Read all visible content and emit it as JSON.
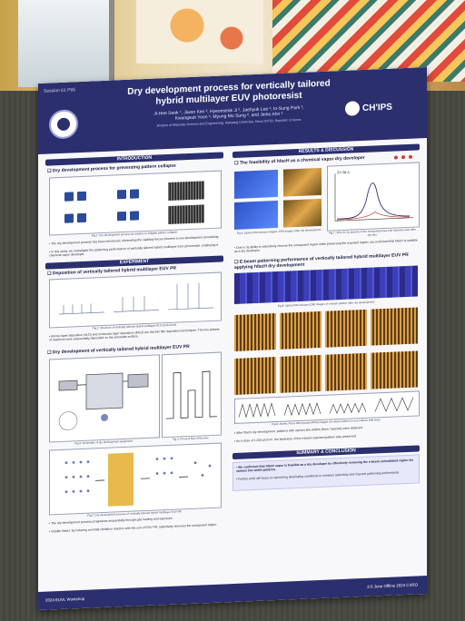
{
  "poster": {
    "conference_id": "Session 61 P65",
    "title_line1": "Dry development process for vertically tailored",
    "title_line2": "hybrid multilayer EUV photoresist",
    "authors_line1": "Ji-Hee Seok ¹, Jiwon Kim ², Hyeonseok Ji ², Jaehyuk Lee ², In-Sung Park ²,",
    "authors_line2": "Kwangsub Yoon ², Myung Mo Sung ², and Jinho Ahn ²",
    "affiliation": "Division of Materials Science and Engineering, Hanyang University, Seoul 04763, Republic of Korea",
    "logo_text": "CH'IPS",
    "sections": {
      "intro": "INTRODUCTION",
      "experiment": "EXPERIMENT",
      "results": "RESULTS & DISCUSSION",
      "summary": "SUMMARY & CONCLUSION"
    },
    "left": {
      "sub1": "❑ Dry development process for preventing pattern collapse",
      "fig1": "Fig.1. Dry development process as solution to mitigate pattern collapse",
      "intro_text": "• The dry development process has been introduced, eliminating the capillary forces inherent in wet development processing.",
      "intro_text2": "• In this study, we investigate the patterning performance of vertically tailored hybrid multilayer EUV photoresist, employing a chemical vapor developer.",
      "sub2": "❑ Deposition of vertically tailored hybrid multilayer EUV PR",
      "fig2": "Fig.2. Structure of vertically tailored hybrid multilayer EUV photoresist",
      "exp_text": "• Atomic layer deposition (ALD) and molecular layer deposition (MLD) are the thin film deposition techniques. The two phases of reactions were sequentially deposited on the substrate surface.",
      "sub3": "❑ Dry development of vertically tailored hybrid multilayer EUV PR",
      "fig3": "Fig.3. Schematic of dry development equipment",
      "fig4": "Fig.4. Process flow of the dev.",
      "fig5": "Fig.5. Dry development process of vertically tailored hybrid multilayer EUV PR",
      "dev_text": "• The dry development process progresses sequentially through gas loading and exposure.",
      "dev_text2": "• Volatile hfacH, by inducing an initial chelation reaction with the unit of EUV PR, selectively removes the unexposed region."
    },
    "right": {
      "sub1": "❑ The feasibility of hfacH as a chemical vapor dry developer",
      "fig_a": "Fig.6. Optical Microscope images, AFM images after dry development",
      "fig_b": "Fig.7. XPS Zn 2p spectra of the unexposed area and exposed area after dry dev.",
      "xps_label": "Zn 2p₃/₂",
      "rd_text": "• Due to its ability to selectively remove the unexposed region while preserving the exposed region, we confirmed that hfacH is suitable as a dry developer.",
      "sub2": "❑ E-beam patterning performance of vertically tailored hybrid multilayer EUV PR applying hfacH dry development",
      "fig_c": "Fig.8. Optical Microscope (OM) images of e-beam pattern after dry development",
      "fig_d": "Fig.9. Atomic Force Microscope (AFM) images of e-beam pattern in accordance with dose",
      "patt_text": "• After hfacH dry development, patterns with various line widths (lines / spaces) were obtained.",
      "patt_text2": "• As a dose of 1,200 μC/cm², the thickness of the e-beam exposed pattern was preserved.",
      "summary1": "• We confirmed that hfacH vapor is feasible as a dry developer by effectively removing the e-beam unirradiated region for various line width patterns.",
      "summary2": "• Further work will focus on optimizing developing conditions to enhance selectivity and improve patterning performance."
    },
    "footer_left": "2024 EUVL Workshop",
    "footer_right": "2-5 June Offline 2024 CXRO"
  },
  "colors": {
    "poster_header": "#2b2f6e",
    "poster_bg": "#f8f8fb"
  }
}
